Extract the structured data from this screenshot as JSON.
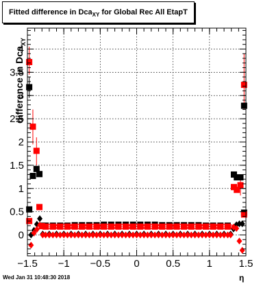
{
  "title": {
    "main": "Fitted difference in Dca",
    "sub": "XY",
    "suffix": " for Global Rec All EtapT"
  },
  "footer": "Wed Jan 31 10:48:30 2018",
  "chart_data": {
    "type": "scatter",
    "xlabel": "η",
    "ylabel": {
      "main": "difference in Dca",
      "sub": "XY"
    },
    "xlim": [
      -1.5,
      1.5
    ],
    "ylim": [
      -0.45,
      4.45
    ],
    "grid": true,
    "xticks": [
      {
        "v": -1.5,
        "label": "−1.5"
      },
      {
        "v": -1,
        "label": "−1"
      },
      {
        "v": -0.5,
        "label": "−0.5"
      },
      {
        "v": 0,
        "label": "0"
      },
      {
        "v": 0.5,
        "label": "0.5"
      },
      {
        "v": 1,
        "label": "1"
      },
      {
        "v": 1.5,
        "label": "1.5"
      }
    ],
    "yticks": [
      {
        "v": 0,
        "label": "0"
      },
      {
        "v": 0.5,
        "label": "0.5"
      },
      {
        "v": 1,
        "label": "1"
      },
      {
        "v": 1.5,
        "label": "1.5"
      },
      {
        "v": 2,
        "label": "2"
      },
      {
        "v": 2.5,
        "label": "2.5"
      },
      {
        "v": 3,
        "label": "3"
      },
      {
        "v": 3.5,
        "label": "3.5"
      },
      {
        "v": 4,
        "label": "4"
      }
    ],
    "series": [
      {
        "marker": "square",
        "color": "#000000",
        "points": [
          [
            -1.475,
            3.18
          ],
          [
            -1.475,
            0.55
          ],
          [
            -1.425,
            1.27
          ],
          [
            -1.375,
            1.42
          ],
          [
            -1.335,
            1.31
          ],
          [
            -1.3,
            0.2
          ],
          [
            -1.25,
            0.2
          ],
          [
            -1.15,
            0.2
          ],
          [
            -1.05,
            0.2
          ],
          [
            -0.95,
            0.2
          ],
          [
            -0.85,
            0.21
          ],
          [
            -0.75,
            0.21
          ],
          [
            -0.65,
            0.21
          ],
          [
            -0.55,
            0.21
          ],
          [
            -0.45,
            0.22
          ],
          [
            -0.35,
            0.22
          ],
          [
            -0.25,
            0.22
          ],
          [
            -0.15,
            0.22
          ],
          [
            -0.05,
            0.22
          ],
          [
            0.05,
            0.22
          ],
          [
            0.15,
            0.22
          ],
          [
            0.25,
            0.22
          ],
          [
            0.35,
            0.21
          ],
          [
            0.45,
            0.21
          ],
          [
            0.55,
            0.21
          ],
          [
            0.65,
            0.21
          ],
          [
            0.75,
            0.21
          ],
          [
            0.85,
            0.21
          ],
          [
            0.95,
            0.2
          ],
          [
            1.05,
            0.2
          ],
          [
            1.15,
            0.2
          ],
          [
            1.25,
            0.2
          ],
          [
            1.335,
            1.3
          ],
          [
            1.375,
            1.24
          ],
          [
            1.425,
            1.24
          ],
          [
            1.475,
            0.48
          ],
          [
            1.475,
            2.78
          ]
        ]
      },
      {
        "marker": "square",
        "color": "#ff0000",
        "points": [
          [
            -1.475,
            3.72
          ],
          [
            -1.475,
            0.3
          ],
          [
            -1.425,
            2.33
          ],
          [
            -1.375,
            1.81
          ],
          [
            -1.335,
            0.6
          ],
          [
            -1.3,
            0.19
          ],
          [
            -1.25,
            0.18
          ],
          [
            -1.15,
            0.18
          ],
          [
            -1.05,
            0.18
          ],
          [
            -0.95,
            0.18
          ],
          [
            -0.85,
            0.18
          ],
          [
            -0.75,
            0.18
          ],
          [
            -0.65,
            0.18
          ],
          [
            -0.55,
            0.18
          ],
          [
            -0.45,
            0.18
          ],
          [
            -0.35,
            0.18
          ],
          [
            -0.25,
            0.18
          ],
          [
            -0.15,
            0.18
          ],
          [
            -0.05,
            0.18
          ],
          [
            0.05,
            0.18
          ],
          [
            0.15,
            0.18
          ],
          [
            0.25,
            0.18
          ],
          [
            0.35,
            0.18
          ],
          [
            0.45,
            0.18
          ],
          [
            0.55,
            0.18
          ],
          [
            0.65,
            0.18
          ],
          [
            0.75,
            0.18
          ],
          [
            0.85,
            0.18
          ],
          [
            0.95,
            0.18
          ],
          [
            1.05,
            0.18
          ],
          [
            1.15,
            0.18
          ],
          [
            1.25,
            0.18
          ],
          [
            1.335,
            1.03
          ],
          [
            1.375,
            0.97
          ],
          [
            1.425,
            1.07
          ],
          [
            1.475,
            0.44
          ],
          [
            1.475,
            3.23
          ]
        ]
      },
      {
        "marker": "diamond",
        "color": "#000000",
        "points": [
          [
            -1.45,
            0.0
          ],
          [
            -1.41,
            0.1
          ],
          [
            -1.37,
            0.23
          ],
          [
            -1.33,
            0.35
          ],
          [
            -1.29,
            0.02
          ],
          [
            -1.2,
            0.02
          ],
          [
            -1.1,
            0.02
          ],
          [
            -1.0,
            0.02
          ],
          [
            -0.9,
            0.02
          ],
          [
            -0.8,
            0.02
          ],
          [
            -0.7,
            0.02
          ],
          [
            -0.6,
            0.02
          ],
          [
            -0.5,
            0.02
          ],
          [
            -0.4,
            0.02
          ],
          [
            -0.3,
            0.02
          ],
          [
            -0.2,
            0.02
          ],
          [
            -0.1,
            0.02
          ],
          [
            0.0,
            0.02
          ],
          [
            0.1,
            0.02
          ],
          [
            0.2,
            0.02
          ],
          [
            0.3,
            0.02
          ],
          [
            0.4,
            0.02
          ],
          [
            0.5,
            0.02
          ],
          [
            0.6,
            0.02
          ],
          [
            0.7,
            0.02
          ],
          [
            0.8,
            0.02
          ],
          [
            0.9,
            0.02
          ],
          [
            1.0,
            0.02
          ],
          [
            1.1,
            0.02
          ],
          [
            1.2,
            0.02
          ],
          [
            1.29,
            0.02
          ],
          [
            1.33,
            0.13
          ],
          [
            1.37,
            0.22
          ],
          [
            1.41,
            0.24
          ],
          [
            1.45,
            0.24
          ]
        ]
      },
      {
        "marker": "diamond",
        "color": "#ff0000",
        "points": [
          [
            -1.45,
            -0.22
          ],
          [
            -1.41,
            0.04
          ],
          [
            -1.37,
            0.12
          ],
          [
            -1.33,
            0.21
          ],
          [
            -1.29,
            0.0
          ],
          [
            -1.25,
            0.0
          ],
          [
            -1.2,
            0.0
          ],
          [
            -1.15,
            0.0
          ],
          [
            -1.1,
            0.0
          ],
          [
            -1.05,
            0.0
          ],
          [
            -1.0,
            0.0
          ],
          [
            -0.95,
            0.0
          ],
          [
            -0.9,
            0.0
          ],
          [
            -0.85,
            0.0
          ],
          [
            -0.8,
            0.0
          ],
          [
            -0.75,
            0.0
          ],
          [
            -0.7,
            0.0
          ],
          [
            -0.65,
            0.0
          ],
          [
            -0.6,
            0.0
          ],
          [
            -0.55,
            0.0
          ],
          [
            -0.5,
            0.0
          ],
          [
            -0.45,
            0.0
          ],
          [
            -0.4,
            0.0
          ],
          [
            -0.35,
            0.0
          ],
          [
            -0.3,
            0.0
          ],
          [
            -0.25,
            0.0
          ],
          [
            -0.2,
            0.0
          ],
          [
            -0.15,
            0.0
          ],
          [
            -0.1,
            0.0
          ],
          [
            -0.05,
            0.0
          ],
          [
            0.0,
            0.0
          ],
          [
            0.05,
            0.0
          ],
          [
            0.1,
            0.0
          ],
          [
            0.15,
            0.0
          ],
          [
            0.2,
            0.0
          ],
          [
            0.25,
            0.0
          ],
          [
            0.3,
            0.0
          ],
          [
            0.35,
            0.0
          ],
          [
            0.4,
            0.0
          ],
          [
            0.45,
            0.0
          ],
          [
            0.5,
            0.0
          ],
          [
            0.55,
            0.0
          ],
          [
            0.6,
            0.0
          ],
          [
            0.65,
            0.0
          ],
          [
            0.7,
            0.0
          ],
          [
            0.75,
            0.0
          ],
          [
            0.8,
            0.0
          ],
          [
            0.85,
            0.0
          ],
          [
            0.9,
            0.0
          ],
          [
            0.95,
            0.0
          ],
          [
            1.0,
            0.0
          ],
          [
            1.05,
            0.0
          ],
          [
            1.1,
            0.0
          ],
          [
            1.15,
            0.0
          ],
          [
            1.2,
            0.0
          ],
          [
            1.25,
            0.0
          ],
          [
            1.29,
            0.0
          ],
          [
            1.33,
            0.17
          ],
          [
            1.37,
            0.14
          ],
          [
            1.41,
            -0.13
          ],
          [
            1.45,
            -0.33
          ]
        ]
      },
      {
        "marker": "circle",
        "color": "#ff0000",
        "points": [
          [
            -1.28,
            0.18
          ],
          [
            -1.24,
            0.18
          ],
          [
            -1.2,
            0.18
          ],
          [
            -1.16,
            0.18
          ],
          [
            -1.12,
            0.18
          ],
          [
            -1.08,
            0.18
          ],
          [
            -1.04,
            0.18
          ],
          [
            -1.0,
            0.18
          ],
          [
            -0.96,
            0.18
          ],
          [
            -0.92,
            0.18
          ],
          [
            -0.88,
            0.18
          ],
          [
            -0.84,
            0.18
          ],
          [
            -0.8,
            0.18
          ],
          [
            -0.76,
            0.18
          ],
          [
            -0.72,
            0.18
          ],
          [
            -0.68,
            0.18
          ],
          [
            -0.64,
            0.18
          ],
          [
            -0.6,
            0.18
          ],
          [
            -0.56,
            0.18
          ],
          [
            -0.52,
            0.18
          ],
          [
            -0.48,
            0.18
          ],
          [
            -0.44,
            0.18
          ],
          [
            -0.4,
            0.18
          ],
          [
            -0.36,
            0.18
          ],
          [
            -0.32,
            0.18
          ],
          [
            -0.28,
            0.18
          ],
          [
            -0.24,
            0.18
          ],
          [
            -0.2,
            0.18
          ],
          [
            -0.16,
            0.18
          ],
          [
            -0.12,
            0.18
          ],
          [
            -0.08,
            0.18
          ],
          [
            -0.04,
            0.18
          ],
          [
            0.0,
            0.18
          ],
          [
            0.04,
            0.18
          ],
          [
            0.08,
            0.18
          ],
          [
            0.12,
            0.18
          ],
          [
            0.16,
            0.18
          ],
          [
            0.2,
            0.18
          ],
          [
            0.24,
            0.18
          ],
          [
            0.28,
            0.18
          ],
          [
            0.32,
            0.18
          ],
          [
            0.36,
            0.18
          ],
          [
            0.4,
            0.18
          ],
          [
            0.44,
            0.18
          ],
          [
            0.48,
            0.18
          ],
          [
            0.52,
            0.18
          ],
          [
            0.56,
            0.18
          ],
          [
            0.6,
            0.18
          ],
          [
            0.64,
            0.18
          ],
          [
            0.68,
            0.18
          ],
          [
            0.72,
            0.18
          ],
          [
            0.76,
            0.18
          ],
          [
            0.8,
            0.18
          ],
          [
            0.84,
            0.18
          ],
          [
            0.88,
            0.18
          ],
          [
            0.92,
            0.18
          ],
          [
            0.96,
            0.18
          ],
          [
            1.0,
            0.18
          ],
          [
            1.04,
            0.18
          ],
          [
            1.08,
            0.18
          ],
          [
            1.12,
            0.18
          ],
          [
            1.16,
            0.18
          ],
          [
            1.2,
            0.18
          ],
          [
            1.24,
            0.18
          ],
          [
            1.28,
            0.18
          ]
        ]
      }
    ],
    "error_bars": [
      {
        "x": -1.475,
        "y1": 3.45,
        "y2": 4.05,
        "color": "#ff0000"
      },
      {
        "x": -1.425,
        "y1": 1.95,
        "y2": 2.7,
        "color": "#ff0000"
      },
      {
        "x": -1.375,
        "y1": 1.5,
        "y2": 2.1,
        "color": "#ff0000"
      },
      {
        "x": -1.475,
        "y1": 2.95,
        "y2": 3.4,
        "color": "#000000"
      },
      {
        "x": 1.475,
        "y1": 2.7,
        "y2": 3.9,
        "color": "#ff0000"
      },
      {
        "x": 1.425,
        "y1": 0.85,
        "y2": 1.3,
        "color": "#ff0000"
      }
    ]
  }
}
